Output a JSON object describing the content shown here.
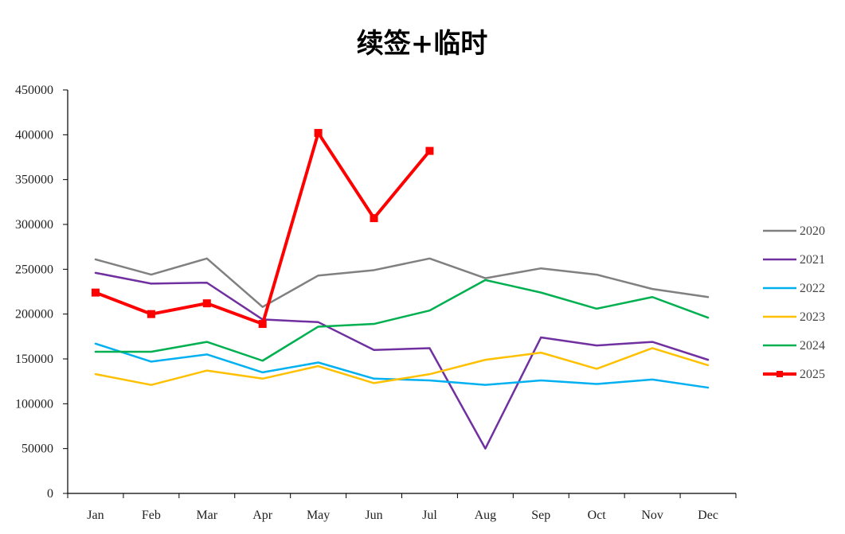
{
  "chart_data": {
    "type": "line",
    "title": "续签+临时",
    "xlabel": "",
    "ylabel": "",
    "ylim": [
      0,
      450000
    ],
    "yticks": [
      0,
      50000,
      100000,
      150000,
      200000,
      250000,
      300000,
      350000,
      400000,
      450000
    ],
    "ytick_labels": [
      "0",
      "50000",
      "100000",
      "150000",
      "200000",
      "250000",
      "300000",
      "350000",
      "400000",
      "450000"
    ],
    "categories": [
      "Jan",
      "Feb",
      "Mar",
      "Apr",
      "May",
      "Jun",
      "Jul",
      "Aug",
      "Sep",
      "Oct",
      "Nov",
      "Dec"
    ],
    "grid": false,
    "legend_position": "right",
    "series": [
      {
        "name": "2020",
        "color": "#808080",
        "values": [
          261000,
          244000,
          262000,
          208000,
          243000,
          249000,
          262000,
          240000,
          251000,
          244000,
          228000,
          219000
        ]
      },
      {
        "name": "2021",
        "color": "#7030A0",
        "values": [
          246000,
          234000,
          235000,
          194000,
          191000,
          160000,
          162000,
          50000,
          174000,
          165000,
          169000,
          149000
        ]
      },
      {
        "name": "2022",
        "color": "#00B0F0",
        "values": [
          167000,
          147000,
          155000,
          135000,
          146000,
          128000,
          126000,
          121000,
          126000,
          122000,
          127000,
          118000
        ]
      },
      {
        "name": "2023",
        "color": "#FFC000",
        "values": [
          133000,
          121000,
          137000,
          128000,
          142000,
          123000,
          133000,
          149000,
          157000,
          139000,
          162000,
          143000
        ]
      },
      {
        "name": "2024",
        "color": "#00B050",
        "values": [
          158000,
          158000,
          169000,
          148000,
          186000,
          189000,
          204000,
          238000,
          224000,
          206000,
          219000,
          196000
        ]
      },
      {
        "name": "2025",
        "color": "#FF0000",
        "values": [
          224000,
          200000,
          212000,
          189000,
          402000,
          307000,
          382000,
          null,
          null,
          null,
          null,
          null
        ],
        "markers": true
      }
    ]
  }
}
